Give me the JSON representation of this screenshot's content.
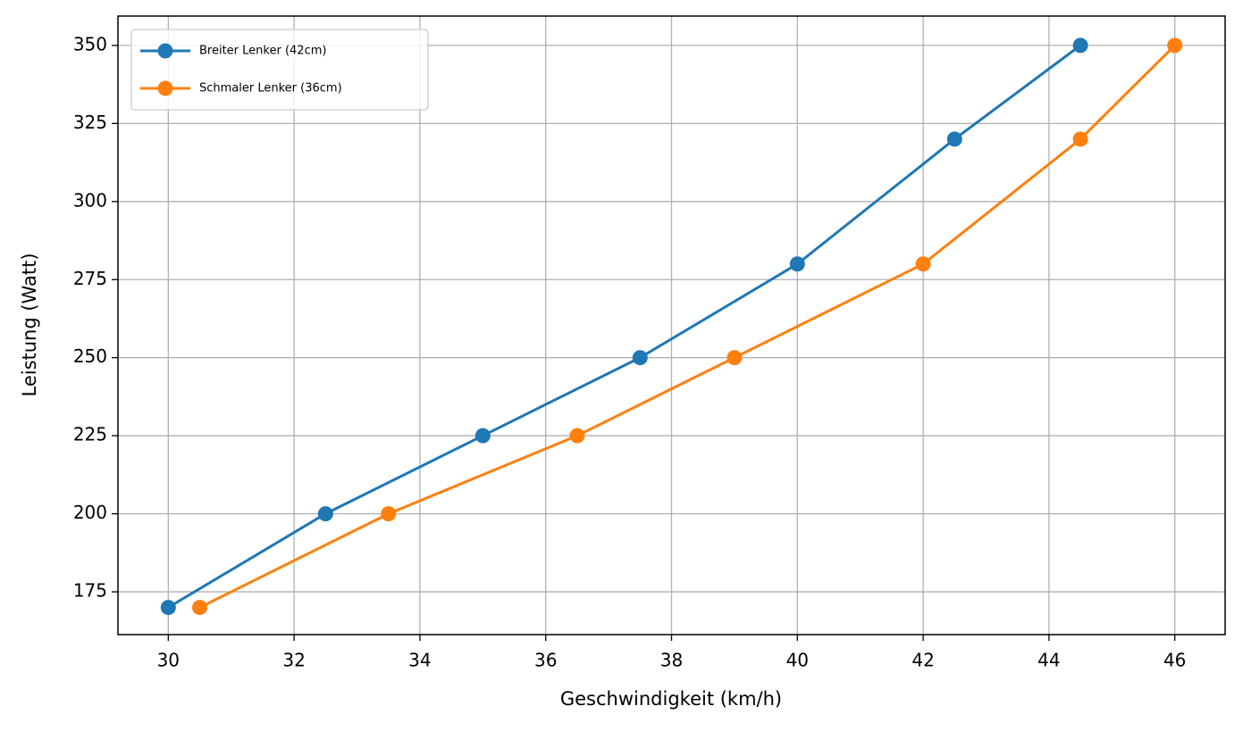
{
  "chart_data": {
    "type": "line",
    "xlabel": "Geschwindigkeit (km/h)",
    "ylabel": "Leistung (Watt)",
    "series": [
      {
        "name": "Breiter Lenker (42cm)",
        "color": "#1f77b4",
        "x": [
          30,
          32.5,
          35,
          37.5,
          40,
          42.5,
          44.5
        ],
        "values": [
          170,
          200,
          225,
          250,
          280,
          320,
          350
        ]
      },
      {
        "name": "Schmaler Lenker (36cm)",
        "color": "#ff7f0e",
        "x": [
          30.5,
          33.5,
          36.5,
          39,
          42,
          44.5,
          46
        ],
        "values": [
          170,
          200,
          225,
          250,
          280,
          320,
          350
        ]
      }
    ],
    "xlim": [
      29.2,
      46.8
    ],
    "xticks": [
      30,
      32,
      34,
      36,
      38,
      40,
      42,
      44,
      46
    ],
    "ylim": [
      161.3,
      359.4
    ],
    "yticks": [
      175,
      200,
      225,
      250,
      275,
      300,
      325,
      350
    ],
    "grid": true,
    "legend": "upper left"
  }
}
